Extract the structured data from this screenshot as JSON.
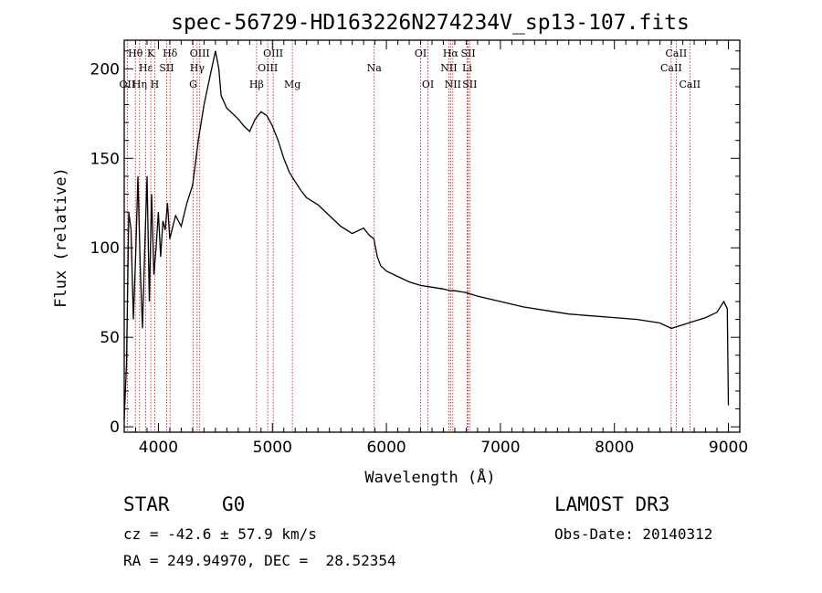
{
  "chart_data": {
    "type": "line",
    "title": "spec-56729-HD163226N274234V_sp13-107.fits",
    "xlabel": "Wavelength (Å)",
    "ylabel": "Flux (relative)",
    "xlim": [
      3700,
      9100
    ],
    "ylim": [
      -3,
      216
    ],
    "x_ticks": [
      4000,
      5000,
      6000,
      7000,
      8000,
      9000
    ],
    "y_ticks": [
      0,
      50,
      100,
      150,
      200
    ],
    "series": [
      {
        "name": "spectrum",
        "x": [
          3700,
          3720,
          3740,
          3760,
          3780,
          3800,
          3820,
          3840,
          3860,
          3880,
          3900,
          3920,
          3940,
          3960,
          3980,
          4000,
          4020,
          4040,
          4060,
          4080,
          4100,
          4150,
          4200,
          4250,
          4300,
          4350,
          4400,
          4450,
          4500,
          4530,
          4550,
          4600,
          4650,
          4700,
          4750,
          4800,
          4850,
          4900,
          4950,
          5000,
          5050,
          5100,
          5150,
          5200,
          5250,
          5300,
          5400,
          5500,
          5600,
          5700,
          5800,
          5850,
          5890,
          5920,
          5950,
          6000,
          6100,
          6200,
          6300,
          6400,
          6500,
          6560,
          6600,
          6700,
          6800,
          7000,
          7200,
          7400,
          7600,
          7800,
          8000,
          8200,
          8400,
          8500,
          8600,
          8700,
          8800,
          8900,
          8960,
          8990,
          9000
        ],
        "y": [
          4,
          35,
          120,
          110,
          60,
          95,
          140,
          90,
          55,
          100,
          140,
          70,
          130,
          85,
          100,
          120,
          95,
          115,
          110,
          125,
          105,
          118,
          112,
          125,
          135,
          160,
          180,
          195,
          210,
          200,
          185,
          178,
          175,
          172,
          168,
          165,
          172,
          176,
          174,
          168,
          160,
          150,
          142,
          137,
          132,
          128,
          124,
          118,
          112,
          108,
          111,
          107,
          105,
          95,
          90,
          87,
          84,
          81,
          79,
          78,
          77,
          76,
          76,
          75,
          73,
          70,
          67,
          65,
          63,
          62,
          61,
          60,
          58,
          55,
          57,
          59,
          61,
          64,
          70,
          66,
          12
        ]
      }
    ],
    "spectral_lines": [
      {
        "label": "Hθ",
        "x": 3798,
        "row": 1
      },
      {
        "label": "OII",
        "x": 3727,
        "row": 3
      },
      {
        "label": "Hη",
        "x": 3835,
        "row": 3
      },
      {
        "label": "Hε",
        "x": 3889,
        "row": 2
      },
      {
        "label": "K",
        "x": 3933,
        "row": 1
      },
      {
        "label": "H",
        "x": 3968,
        "row": 3
      },
      {
        "label": "SII",
        "x": 4072,
        "row": 2
      },
      {
        "label": "Hδ",
        "x": 4102,
        "row": 1
      },
      {
        "label": "G",
        "x": 4305,
        "row": 3
      },
      {
        "label": "Hγ",
        "x": 4340,
        "row": 2
      },
      {
        "label": "OIII",
        "x": 4363,
        "row": 1
      },
      {
        "label": "Hβ",
        "x": 4861,
        "row": 3
      },
      {
        "label": "OIII",
        "x": 4959,
        "row": 2
      },
      {
        "label": "OIII",
        "x": 5007,
        "row": 1
      },
      {
        "label": "Mg",
        "x": 5175,
        "row": 3
      },
      {
        "label": "Na",
        "x": 5893,
        "row": 2
      },
      {
        "label": "OI",
        "x": 6300,
        "row": 1
      },
      {
        "label": "OI",
        "x": 6364,
        "row": 3
      },
      {
        "label": "NII",
        "x": 6548,
        "row": 2
      },
      {
        "label": "Hα",
        "x": 6563,
        "row": 1
      },
      {
        "label": "NII",
        "x": 6583,
        "row": 3
      },
      {
        "label": "Li",
        "x": 6708,
        "row": 2
      },
      {
        "label": "SII",
        "x": 6717,
        "row": 1
      },
      {
        "label": "SII",
        "x": 6731,
        "row": 3
      },
      {
        "label": "CaII",
        "x": 8498,
        "row": 2
      },
      {
        "label": "CaII",
        "x": 8542,
        "row": 1
      },
      {
        "label": "CaII",
        "x": 8662,
        "row": 3
      }
    ]
  },
  "info": {
    "object_class": "STAR",
    "subclass": "G0",
    "survey": "LAMOST DR3",
    "cz": "cz = -42.6 ± 57.9 km/s",
    "obs_date": "Obs-Date: 20140312",
    "coords": "RA = 249.94970, DEC =  28.52354"
  },
  "colors": {
    "spectrum": "#000000",
    "line_marker": "#cc0000",
    "axes": "#000000"
  }
}
